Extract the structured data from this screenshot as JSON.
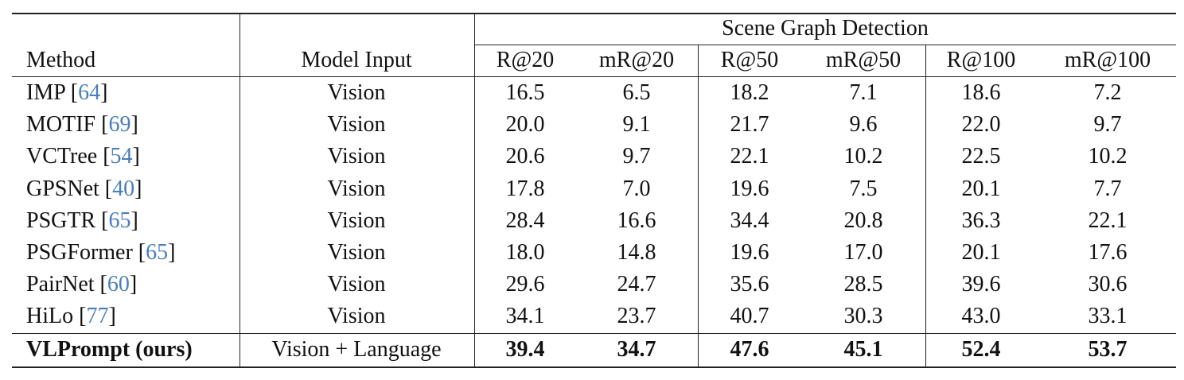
{
  "table": {
    "group_header": "Scene Graph Detection",
    "headers": [
      "Method",
      "Model Input",
      "R@20",
      "mR@20",
      "R@50",
      "mR@50",
      "R@100",
      "mR@100"
    ],
    "rows": [
      {
        "method": "IMP",
        "ref": [
          "[",
          "64",
          "]"
        ],
        "input": "Vision",
        "values": [
          "16.5",
          "6.5",
          "18.2",
          "7.1",
          "18.6",
          "7.2"
        ]
      },
      {
        "method": "MOTIF",
        "ref": [
          "[",
          "69",
          "]"
        ],
        "input": "Vision",
        "values": [
          "20.0",
          "9.1",
          "21.7",
          "9.6",
          "22.0",
          "9.7"
        ]
      },
      {
        "method": "VCTree",
        "ref": [
          "[",
          "54",
          "]"
        ],
        "input": "Vision",
        "values": [
          "20.6",
          "9.7",
          "22.1",
          "10.2",
          "22.5",
          "10.2"
        ]
      },
      {
        "method": "GPSNet",
        "ref": [
          "[",
          "40",
          "]"
        ],
        "input": "Vision",
        "values": [
          "17.8",
          "7.0",
          "19.6",
          "7.5",
          "20.1",
          "7.7"
        ]
      },
      {
        "method": "PSGTR",
        "ref": [
          "[",
          "65",
          "]"
        ],
        "input": "Vision",
        "values": [
          "28.4",
          "16.6",
          "34.4",
          "20.8",
          "36.3",
          "22.1"
        ]
      },
      {
        "method": "PSGFormer",
        "ref": [
          "[",
          "65",
          "]"
        ],
        "input": "Vision",
        "values": [
          "18.0",
          "14.8",
          "19.6",
          "17.0",
          "20.1",
          "17.6"
        ]
      },
      {
        "method": "PairNet",
        "ref": [
          "[",
          "60",
          "]"
        ],
        "input": "Vision",
        "values": [
          "29.6",
          "24.7",
          "35.6",
          "28.5",
          "39.6",
          "30.6"
        ]
      },
      {
        "method": "HiLo",
        "ref": [
          "[",
          "77",
          "]"
        ],
        "input": "Vision",
        "values": [
          "34.1",
          "23.7",
          "40.7",
          "30.3",
          "43.0",
          "33.1"
        ]
      },
      {
        "method": "VLPrompt (ours)",
        "input": "Vision + Language",
        "values": [
          "39.4",
          "34.7",
          "47.6",
          "45.1",
          "52.4",
          "53.7"
        ],
        "bold": true
      }
    ]
  }
}
